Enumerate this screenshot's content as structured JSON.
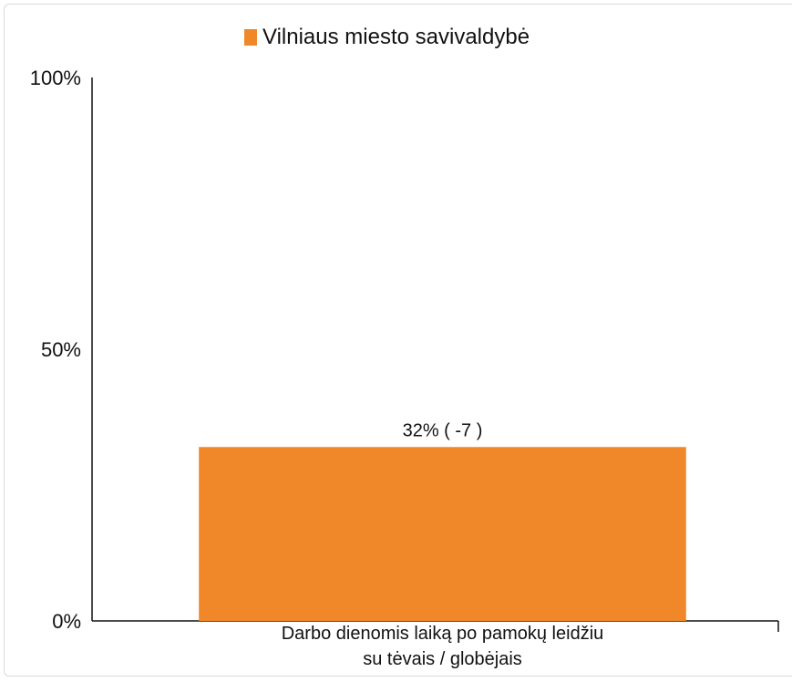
{
  "chart_data": {
    "type": "bar",
    "categories": [
      "Darbo dienomis laiką po pamokų leidžiu su tėvais / globėjais"
    ],
    "category_label_lines": [
      [
        "Darbo dienomis laiką po pamokų leidžiu",
        "su tėvais / globėjais"
      ]
    ],
    "series": [
      {
        "name": "Vilniaus miesto savivaldybė",
        "values": [
          32
        ],
        "data_labels": [
          "32% ( -7 )"
        ],
        "color": "#f0882a"
      }
    ],
    "ylim": [
      0,
      100
    ],
    "yticks": [
      {
        "value": 0,
        "label": "0%"
      },
      {
        "value": 50,
        "label": "50%"
      },
      {
        "value": 100,
        "label": "100%"
      }
    ],
    "legend_position": "top-center",
    "grid": false,
    "title": "",
    "xlabel": "",
    "ylabel": ""
  }
}
